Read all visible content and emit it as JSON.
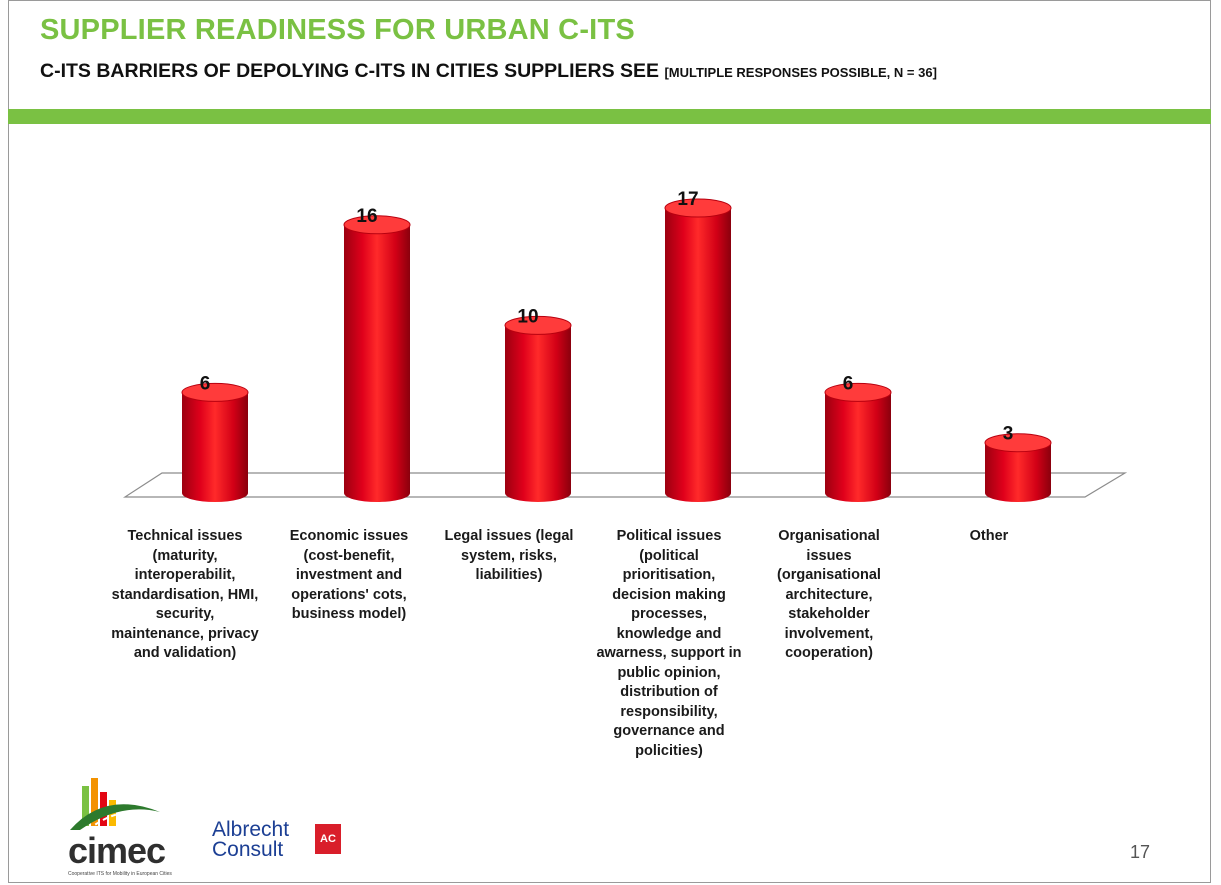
{
  "header": {
    "title": "SUPPLIER READINESS FOR URBAN C-ITS",
    "subtitle": "C-ITS BARRIERS OF DEPOLYING C-ITS IN CITIES SUPPLIERS SEE",
    "subtitle_note": "[MULTIPLE RESPONSES POSSIBLE, N = 36]"
  },
  "chart_data": {
    "type": "bar",
    "style": "3d-cylinder",
    "categories": [
      "Technical issues (maturity, interoperabilit, standardisation, HMI, security, maintenance, privacy and validation)",
      "Economic issues (cost-benefit, investment and operations' cots, business model)",
      "Legal issues (legal system, risks, liabilities)",
      "Political issues (political prioritisation, decision making processes, knowledge and awarness, support in public opinion, distribution of responsibility, governance and policities)",
      "Organisational issues (organisational architecture, stakeholder involvement, cooperation)",
      "Other"
    ],
    "values": [
      6,
      16,
      10,
      17,
      6,
      3
    ],
    "data_labels": [
      "6",
      "16",
      "10",
      "17",
      "6",
      "3"
    ],
    "bar_color": "#e0001b",
    "ylim": [
      0,
      17
    ],
    "grid": false,
    "legend": "none"
  },
  "footer": {
    "logo_cimec": "cimec",
    "logo_cimec_tagline": "Cooperative ITS for Mobility in European Cities",
    "logo_albrecht_line1": "Albrecht",
    "logo_albrecht_line2": "Consult",
    "logo_albrecht_mark": "AC",
    "page_number": "17"
  },
  "colors": {
    "accent_green": "#7ac143",
    "bar_red": "#e0001b"
  }
}
